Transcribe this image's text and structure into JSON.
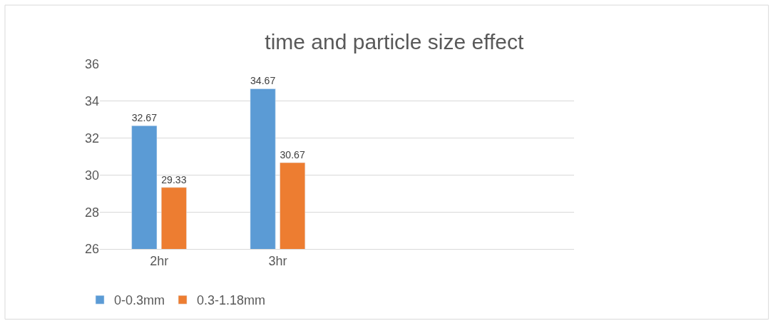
{
  "chart_data": {
    "type": "bar",
    "title": "time and particle size effect",
    "categories": [
      "2hr",
      "3hr",
      null,
      null
    ],
    "series": [
      {
        "name": "0-0.3mm",
        "color": "#5b9bd5",
        "values": [
          32.67,
          34.67,
          null,
          null
        ]
      },
      {
        "name": "0.3-1.18mm",
        "color": "#ed7d31",
        "values": [
          29.33,
          30.67,
          null,
          null
        ]
      }
    ],
    "ylim": [
      26,
      36
    ],
    "yticks": [
      26,
      28,
      30,
      32,
      34,
      36
    ],
    "grid": "y",
    "legend": "bottom left",
    "data_labels": true
  }
}
